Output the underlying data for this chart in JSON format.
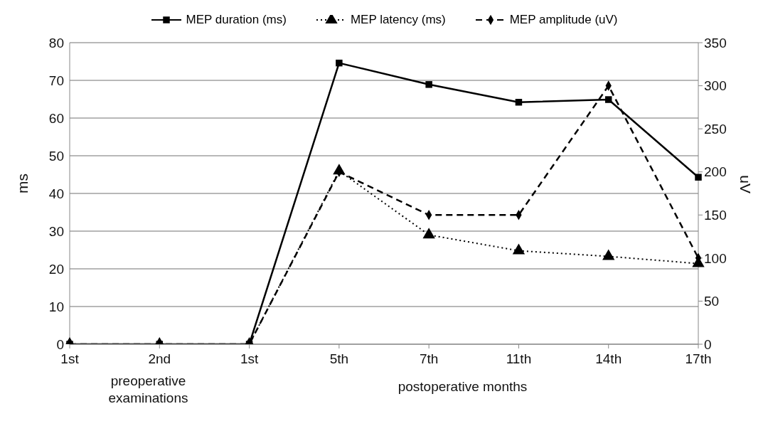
{
  "chart_data": {
    "type": "line",
    "categories": [
      "1st",
      "2nd",
      "1st",
      "5th",
      "7th",
      "11th",
      "14th",
      "17th"
    ],
    "series": [
      {
        "name": "MEP duration (ms)",
        "color": "#000000",
        "marker": "square",
        "line_style": "solid",
        "values": [
          0,
          0,
          0,
          74.6,
          68.9,
          64.2,
          64.9,
          44.3
        ]
      },
      {
        "name": "MEP latency (ms)",
        "color": "#000000",
        "marker": "triangle",
        "line_style": "dotted",
        "values": [
          0,
          0,
          0,
          46,
          29,
          24.8,
          23.3,
          21.4
        ]
      },
      {
        "name": "MEP amplitude (uV)",
        "color": "#000000",
        "marker": "diamond",
        "line_style": "dashed",
        "axis": "y2",
        "values": [
          0,
          0,
          0,
          200,
          150,
          150,
          300,
          100
        ]
      }
    ],
    "ylabel": "ms",
    "y2label": "uV",
    "ylim": [
      0,
      80
    ],
    "yticks": [
      0,
      10,
      20,
      30,
      40,
      50,
      60,
      70,
      80
    ],
    "y2lim": [
      0,
      350
    ],
    "y2ticks": [
      0,
      50,
      100,
      150,
      200,
      250,
      300,
      350
    ],
    "annotations": [
      "preoperative examinations",
      "postoperative months"
    ],
    "grid": "y",
    "legend": "top"
  }
}
